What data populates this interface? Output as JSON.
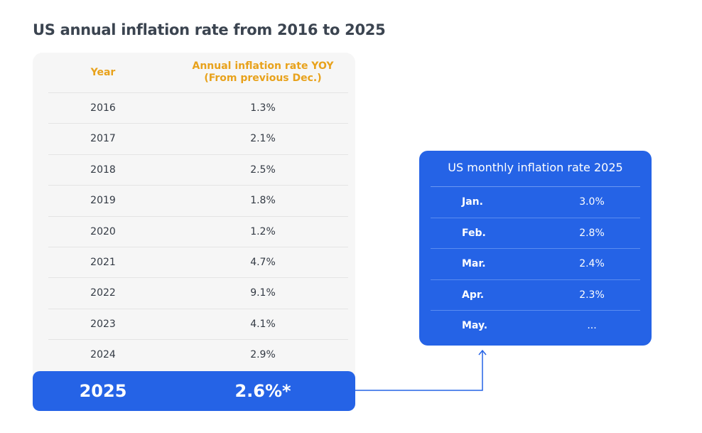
{
  "title": "US annual inflation rate from 2016 to 2025",
  "chart_data": [
    {
      "type": "table",
      "columns": [
        "Year",
        "Annual inflation rate YOY (From previous Dec.)"
      ],
      "header_line2": "(From previous Dec.)",
      "header_line1": "Annual inflation rate YOY",
      "rows": [
        {
          "year": "2016",
          "rate": "1.3%"
        },
        {
          "year": "2017",
          "rate": "2.1%"
        },
        {
          "year": "2018",
          "rate": "2.5%"
        },
        {
          "year": "2019",
          "rate": "1.8%"
        },
        {
          "year": "2020",
          "rate": "1.2%"
        },
        {
          "year": "2021",
          "rate": "4.7%"
        },
        {
          "year": "2022",
          "rate": "9.1%"
        },
        {
          "year": "2023",
          "rate": "4.1%"
        },
        {
          "year": "2024",
          "rate": "2.9%"
        }
      ],
      "highlight": {
        "year": "2025",
        "rate": "2.6%*"
      }
    },
    {
      "type": "table",
      "title": "US monthly inflation rate 2025",
      "rows": [
        {
          "month": "Jan.",
          "rate": "3.0%"
        },
        {
          "month": "Feb.",
          "rate": "2.8%"
        },
        {
          "month": "Mar.",
          "rate": "2.4%"
        },
        {
          "month": "Apr.",
          "rate": "2.3%"
        },
        {
          "month": "May.",
          "rate": "..."
        }
      ]
    }
  ],
  "colors": {
    "accent_blue": "#2563e6",
    "header_orange": "#e8a21c",
    "panel_bg": "#f6f6f6"
  }
}
